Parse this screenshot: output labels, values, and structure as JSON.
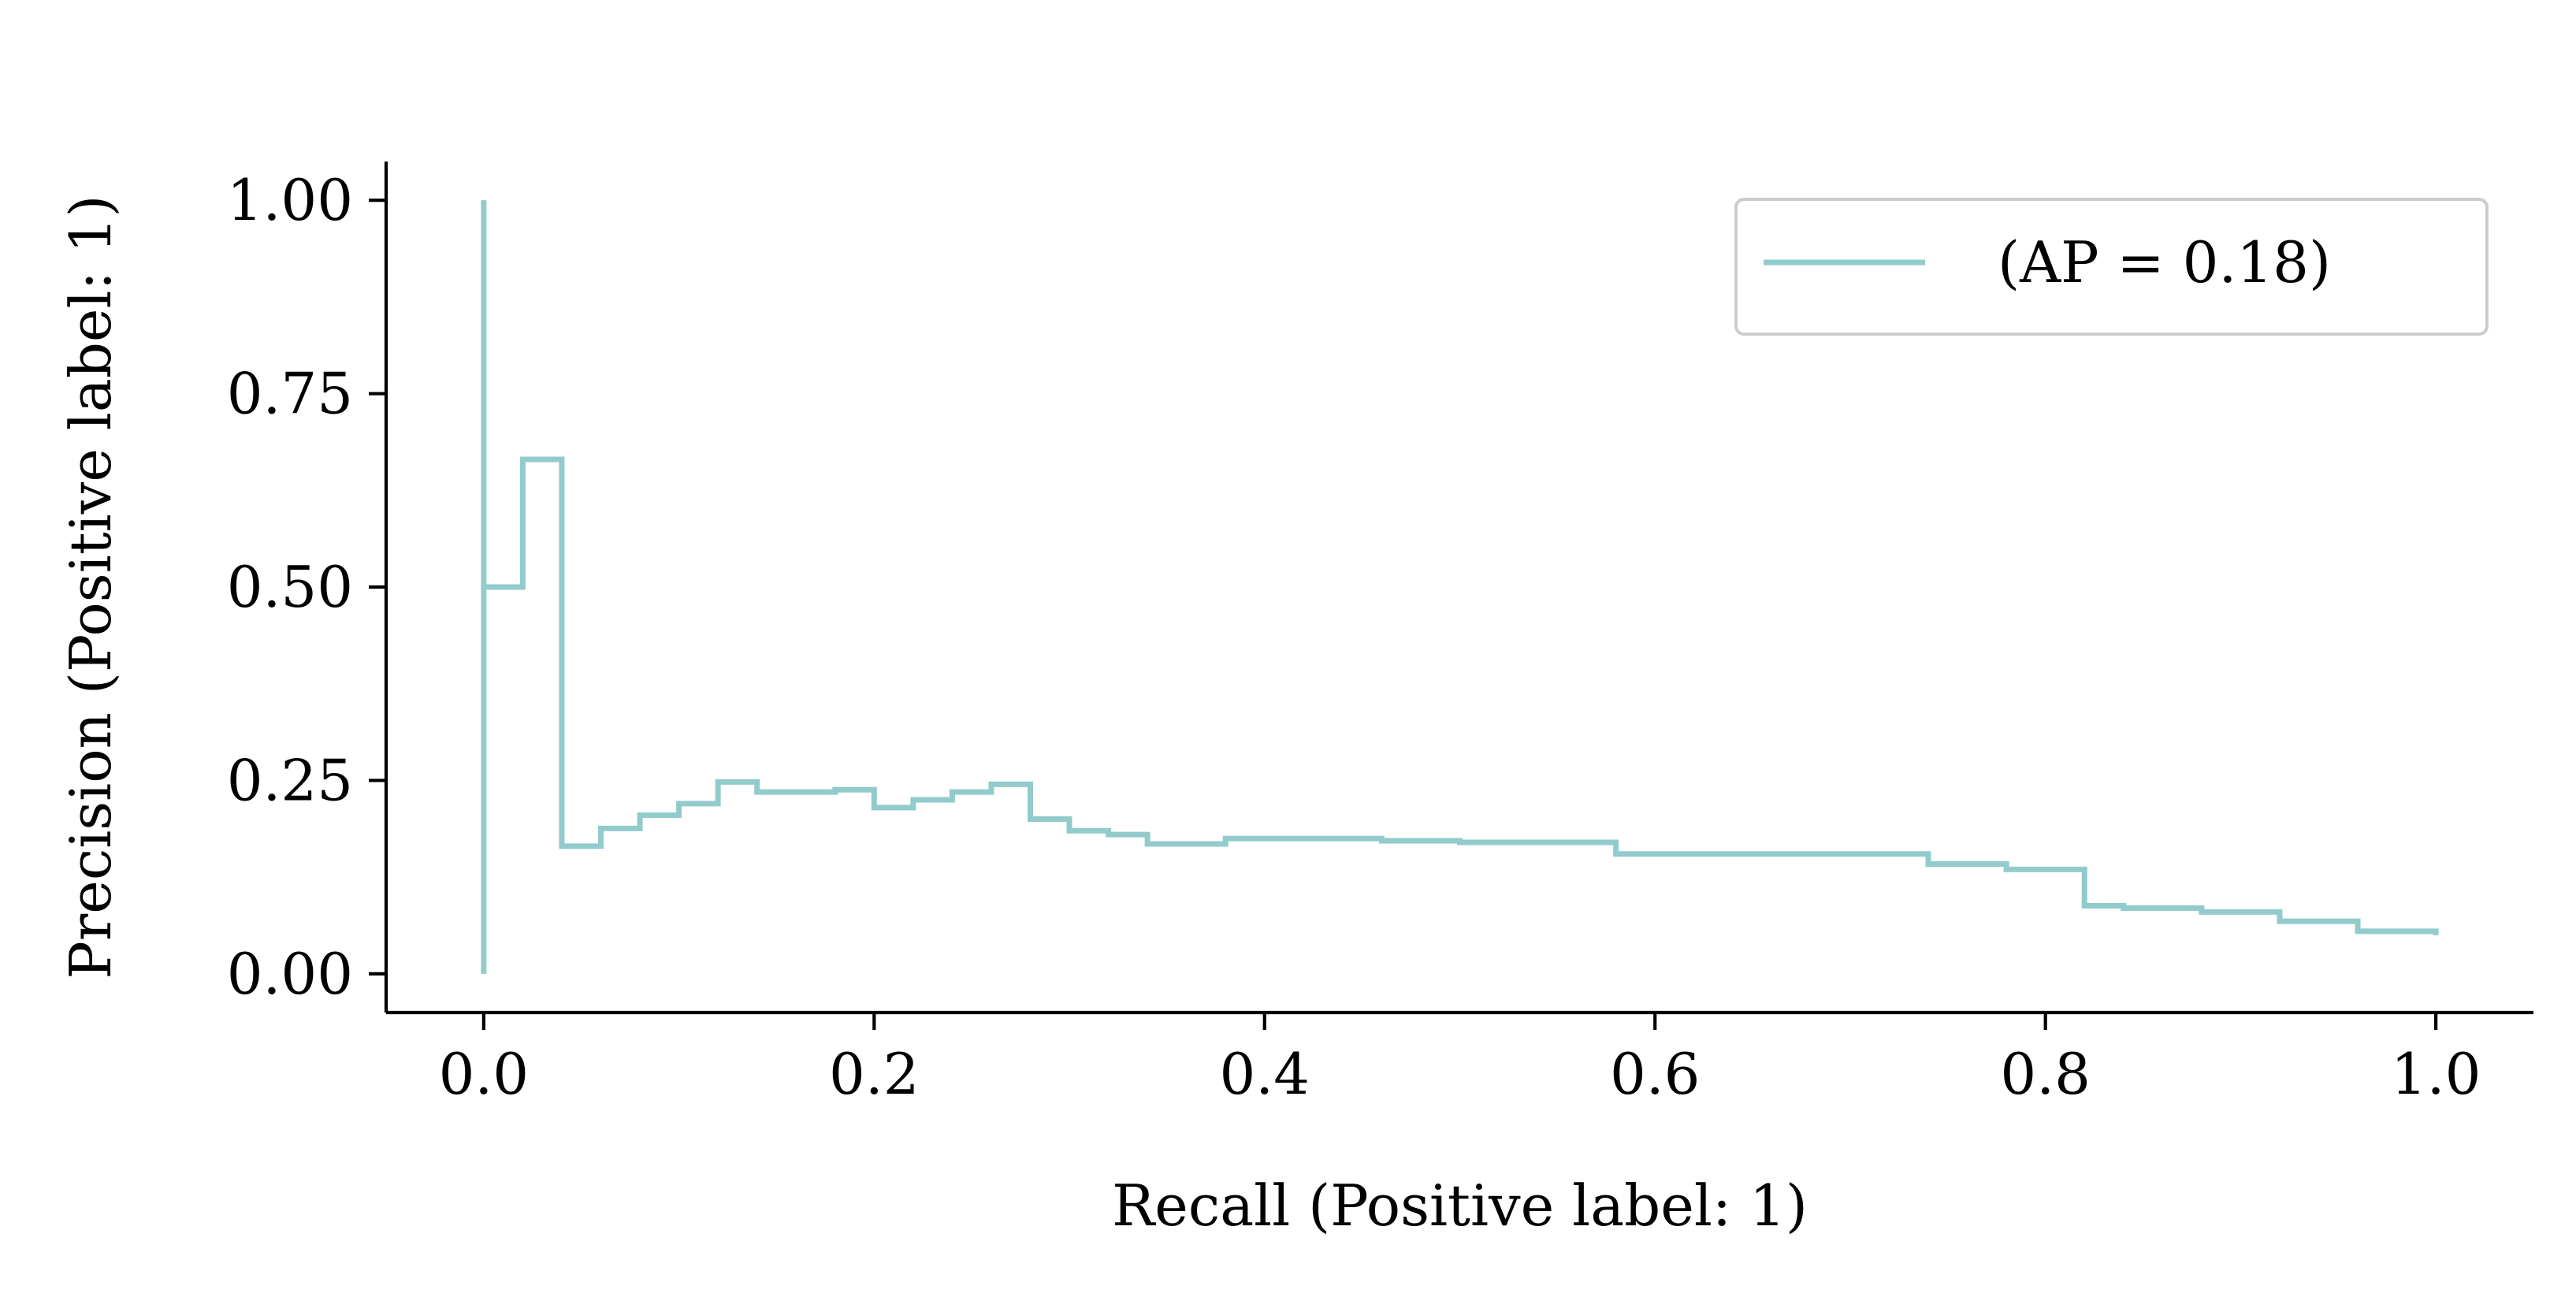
{
  "chart_data": {
    "type": "line",
    "drawstyle": "steps-post",
    "xlabel": "Recall (Positive label: 1)",
    "ylabel": "Precision (Positive label: 1)",
    "xlim": [
      -0.05,
      1.05
    ],
    "ylim": [
      -0.05,
      1.05
    ],
    "xticks": [
      0.0,
      0.2,
      0.4,
      0.6,
      0.8,
      1.0
    ],
    "xtick_labels": [
      "0.0",
      "0.2",
      "0.4",
      "0.6",
      "0.8",
      "1.0"
    ],
    "yticks": [
      0.0,
      0.25,
      0.5,
      0.75,
      1.0
    ],
    "ytick_labels": [
      "0.00",
      "0.25",
      "0.50",
      "0.75",
      "1.00"
    ],
    "grid": false,
    "legend": {
      "position": "top-right",
      "entries": [
        " (AP = 0.18)"
      ]
    },
    "series": [
      {
        "name": " (AP = 0.18)",
        "color": "#92cbcb",
        "recall": [
          1.0,
          1.0,
          0.96,
          0.96,
          0.92,
          0.92,
          0.88,
          0.88,
          0.84,
          0.84,
          0.82,
          0.82,
          0.78,
          0.78,
          0.74,
          0.74,
          0.62,
          0.62,
          0.58,
          0.58,
          0.5,
          0.5,
          0.46,
          0.46,
          0.38,
          0.38,
          0.34,
          0.34,
          0.32,
          0.32,
          0.3,
          0.3,
          0.28,
          0.28,
          0.26,
          0.26,
          0.24,
          0.24,
          0.22,
          0.22,
          0.2,
          0.2,
          0.18,
          0.18,
          0.14,
          0.14,
          0.12,
          0.12,
          0.1,
          0.1,
          0.08,
          0.08,
          0.06,
          0.06,
          0.04,
          0.04,
          0.02,
          0.02,
          0.0,
          0.0
        ],
        "precision": [
          0.05,
          0.055,
          0.055,
          0.068,
          0.068,
          0.08,
          0.08,
          0.085,
          0.085,
          0.088,
          0.088,
          0.135,
          0.135,
          0.142,
          0.142,
          0.155,
          0.155,
          0.155,
          0.155,
          0.17,
          0.17,
          0.172,
          0.172,
          0.175,
          0.175,
          0.168,
          0.168,
          0.18,
          0.18,
          0.185,
          0.185,
          0.2,
          0.2,
          0.245,
          0.245,
          0.235,
          0.235,
          0.225,
          0.225,
          0.215,
          0.215,
          0.238,
          0.238,
          0.235,
          0.235,
          0.248,
          0.248,
          0.22,
          0.22,
          0.205,
          0.205,
          0.188,
          0.188,
          0.165,
          0.165,
          0.665,
          0.665,
          0.5,
          0.5,
          1.0
        ],
        "tail_to": 0.0
      }
    ]
  }
}
